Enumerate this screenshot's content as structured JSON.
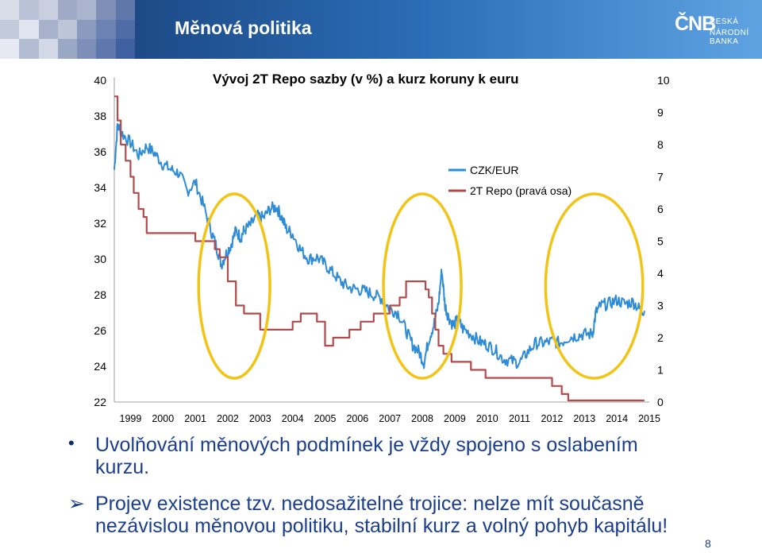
{
  "header": {
    "title": "Měnová politika",
    "logo_main": "ČNB",
    "logo_line1": "ČESKÁ",
    "logo_line2": "NÁRODNÍ BANKA"
  },
  "colors": {
    "czk_eur": "#2e8bd6",
    "repo": "#b14a4a",
    "highlight_circle": "#f2c416",
    "header_dark": "#1d4a86",
    "bullet_text": "#1b3f8b"
  },
  "chart_data": {
    "type": "line",
    "title": "Vývoj 2T Repo sazby (v %) a kurz koruny k euru",
    "x_ticks": [
      "1999",
      "2000",
      "2001",
      "2002",
      "2003",
      "2004",
      "2005",
      "2006",
      "2007",
      "2008",
      "2009",
      "2010",
      "2011",
      "2012",
      "2013",
      "2014",
      "2015"
    ],
    "xlim": [
      1999,
      2015.5
    ],
    "y_left": {
      "ticks": [
        "40",
        "38",
        "36",
        "34",
        "32",
        "30",
        "28",
        "26",
        "24",
        "22"
      ],
      "ylim": [
        22,
        40
      ]
    },
    "y_right": {
      "ticks": [
        "10",
        "9",
        "8",
        "7",
        "6",
        "5",
        "4",
        "3",
        "2",
        "1",
        "0"
      ],
      "ylim": [
        0,
        10
      ]
    },
    "legend": [
      "CZK/EUR",
      "2T Repo (pravá osa)"
    ],
    "legend_position": "top-center",
    "series": [
      {
        "name": "CZK/EUR",
        "axis": "left",
        "x": [
          1999.0,
          1999.1,
          1999.25,
          1999.5,
          1999.75,
          2000.0,
          2000.25,
          2000.5,
          2000.75,
          2001.0,
          2001.25,
          2001.5,
          2001.75,
          2002.0,
          2002.15,
          2002.3,
          2002.45,
          2002.6,
          2002.75,
          2002.9,
          2003.0,
          2003.2,
          2003.4,
          2003.6,
          2003.8,
          2004.0,
          2004.15,
          2004.3,
          2004.5,
          2004.75,
          2005.0,
          2005.25,
          2005.5,
          2005.75,
          2006.0,
          2006.25,
          2006.5,
          2006.75,
          2007.0,
          2007.25,
          2007.5,
          2007.75,
          2008.0,
          2008.2,
          2008.4,
          2008.55,
          2008.7,
          2008.85,
          2009.0,
          2009.1,
          2009.2,
          2009.3,
          2009.45,
          2009.6,
          2009.75,
          2010.0,
          2010.25,
          2010.5,
          2010.75,
          2011.0,
          2011.25,
          2011.5,
          2011.75,
          2012.0,
          2012.25,
          2012.5,
          2012.75,
          2013.0,
          2013.25,
          2013.5,
          2013.75,
          2013.85,
          2014.0,
          2014.25,
          2014.5,
          2014.75,
          2015.0,
          2015.2,
          2015.35
        ],
        "values": [
          35.0,
          37.5,
          37.0,
          36.5,
          35.8,
          36.3,
          35.9,
          35.3,
          35.0,
          34.8,
          33.8,
          34.3,
          33.0,
          31.5,
          30.7,
          29.7,
          30.3,
          30.8,
          31.6,
          31.2,
          31.6,
          31.9,
          32.4,
          32.3,
          32.8,
          32.9,
          32.4,
          31.7,
          31.4,
          30.5,
          30.0,
          30.1,
          29.7,
          29.2,
          28.7,
          28.4,
          28.3,
          28.2,
          28.0,
          27.8,
          27.2,
          27.0,
          26.0,
          25.2,
          24.8,
          24.2,
          25.5,
          26.3,
          27.5,
          29.4,
          27.4,
          26.8,
          26.3,
          26.6,
          26.1,
          25.8,
          25.4,
          25.2,
          24.9,
          24.4,
          24.3,
          24.2,
          24.8,
          25.3,
          25.3,
          25.4,
          25.3,
          25.6,
          25.7,
          25.8,
          25.8,
          27.0,
          27.4,
          27.5,
          27.7,
          27.5,
          27.6,
          27.2,
          27.1
        ]
      },
      {
        "name": "2T Repo (pravá osa)",
        "axis": "right",
        "x": [
          1999.0,
          1999.1,
          1999.2,
          1999.35,
          1999.5,
          1999.6,
          1999.75,
          1999.9,
          2000.0,
          2001.0,
          2001.5,
          2002.1,
          2002.25,
          2002.5,
          2002.75,
          2003.0,
          2003.5,
          2004.5,
          2004.75,
          2005.25,
          2005.5,
          2005.75,
          2006.25,
          2006.6,
          2007.0,
          2007.5,
          2007.8,
          2008.0,
          2008.6,
          2008.7,
          2008.8,
          2008.9,
          2009.0,
          2009.15,
          2009.4,
          2010.0,
          2010.45,
          2012.0,
          2012.5,
          2012.8,
          2013.0,
          2013.15
        ],
        "values": [
          9.5,
          8.75,
          8.0,
          7.5,
          7.0,
          6.5,
          6.0,
          5.75,
          5.25,
          5.25,
          5.0,
          4.75,
          4.5,
          3.75,
          3.0,
          2.75,
          2.25,
          2.5,
          2.75,
          2.5,
          1.75,
          2.0,
          2.25,
          2.5,
          2.75,
          3.0,
          3.25,
          3.75,
          3.5,
          3.25,
          2.75,
          2.25,
          1.75,
          1.5,
          1.25,
          1.0,
          0.75,
          0.75,
          0.5,
          0.25,
          0.05,
          0.05
        ]
      }
    ],
    "annotations": [
      {
        "shape": "circle",
        "x_range": [
          2001.6,
          2003.8
        ]
      },
      {
        "shape": "circle",
        "x_range": [
          2007.3,
          2009.7
        ]
      },
      {
        "shape": "circle",
        "x_range": [
          2012.3,
          2015.3
        ]
      }
    ]
  },
  "bullets": [
    {
      "marker": "•",
      "text": "Uvolňování měnových podmínek je vždy spojeno s oslabením kurzu."
    },
    {
      "marker": "➢",
      "text": "Projev existence tzv. nedosažitelné trojice: nelze mít současně nezávislou měnovou politiku, stabilní kurz a volný pohyb kapitálu!"
    }
  ],
  "page_number": "8"
}
